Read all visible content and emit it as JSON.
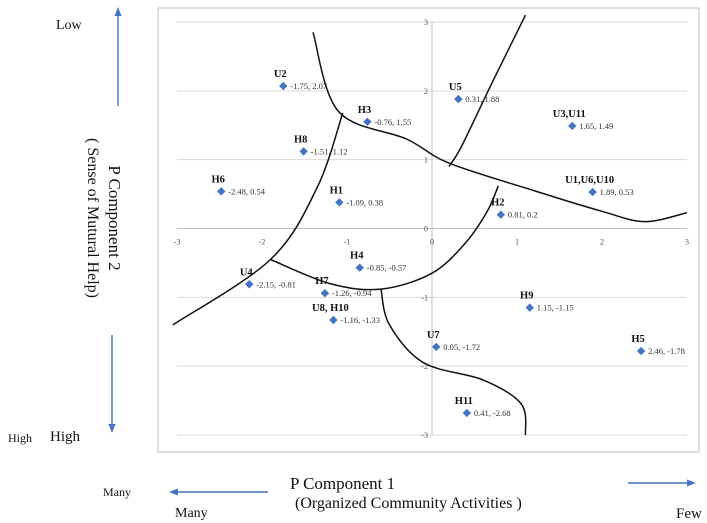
{
  "chart_data": {
    "type": "scatter",
    "xlim": [
      -3,
      3
    ],
    "ylim": [
      -3,
      3
    ],
    "xticks": [
      "-3",
      "-2",
      "-1",
      "0",
      "1",
      "2",
      "3"
    ],
    "yticks": [
      "3",
      "2",
      "1",
      "0",
      "-1",
      "-2",
      "-3"
    ],
    "grid": "horizontal",
    "points": [
      {
        "label": "U2",
        "x": -1.75,
        "y": 2.07,
        "value_text": "-1.75, 2.07"
      },
      {
        "label": "U5",
        "x": 0.31,
        "y": 1.88,
        "value_text": "0.31, 1.88"
      },
      {
        "label": "H3",
        "x": -0.76,
        "y": 1.55,
        "value_text": "-0.76, 1.55"
      },
      {
        "label": "U3,U11",
        "x": 1.65,
        "y": 1.49,
        "value_text": "1.65, 1.49"
      },
      {
        "label": "H8",
        "x": -1.51,
        "y": 1.12,
        "value_text": "-1.51, 1.12"
      },
      {
        "label": "H6",
        "x": -2.48,
        "y": 0.54,
        "value_text": "-2.48, 0.54"
      },
      {
        "label": "H1",
        "x": -1.09,
        "y": 0.38,
        "value_text": "-1.09, 0.38"
      },
      {
        "label": "U1,U6,U10",
        "x": 1.89,
        "y": 0.53,
        "value_text": "1.89, 0.53"
      },
      {
        "label": "H2",
        "x": 0.81,
        "y": 0.2,
        "value_text": "0.81, 0.2"
      },
      {
        "label": "H4",
        "x": -0.85,
        "y": -0.57,
        "value_text": "-0.85, -0.57"
      },
      {
        "label": "U4",
        "x": -2.15,
        "y": -0.81,
        "value_text": "-2.15, -0.81"
      },
      {
        "label": "H7",
        "x": -1.26,
        "y": -0.94,
        "value_text": "-1.26, -0.94"
      },
      {
        "label": "U8, H10",
        "x": -1.16,
        "y": -1.33,
        "value_text": "-1.16, -1.33"
      },
      {
        "label": "H9",
        "x": 1.15,
        "y": -1.15,
        "value_text": "1.15, -1.15"
      },
      {
        "label": "U7",
        "x": 0.05,
        "y": -1.72,
        "value_text": "0.05, -1.72"
      },
      {
        "label": "H5",
        "x": 2.46,
        "y": -1.78,
        "value_text": "2.46, -1.78"
      },
      {
        "label": "H11",
        "x": 0.41,
        "y": -2.68,
        "value_text": "0.41, -2.68"
      }
    ],
    "boundary_curves": [
      [
        [
          -1.4,
          2.85
        ],
        [
          -1.1,
          1.7
        ],
        [
          -0.3,
          1.3
        ],
        [
          0.2,
          0.95
        ],
        [
          1.2,
          0.55
        ],
        [
          2.0,
          0.25
        ],
        [
          2.5,
          0.1
        ],
        [
          3.0,
          0.23
        ]
      ],
      [
        [
          1.1,
          3.1
        ],
        [
          0.7,
          2.1
        ],
        [
          0.35,
          1.2
        ],
        [
          0.2,
          0.9
        ]
      ],
      [
        [
          -1.05,
          1.68
        ],
        [
          -1.35,
          0.6
        ],
        [
          -1.9,
          -0.45
        ],
        [
          -3.05,
          -1.4
        ]
      ],
      [
        [
          -1.9,
          -0.45
        ],
        [
          -1.2,
          -0.8
        ],
        [
          -0.6,
          -0.88
        ],
        [
          0.0,
          -0.65
        ],
        [
          0.4,
          -0.2
        ],
        [
          0.65,
          0.25
        ],
        [
          0.78,
          0.62
        ]
      ],
      [
        [
          -0.6,
          -0.88
        ],
        [
          -0.5,
          -1.4
        ],
        [
          -0.1,
          -1.95
        ],
        [
          0.6,
          -2.2
        ],
        [
          1.05,
          -2.55
        ],
        [
          1.1,
          -3.0
        ]
      ]
    ]
  },
  "axis": {
    "y_top_label": "Low",
    "y_bottom_label_1": "High",
    "y_bottom_label_2": "High",
    "y_title_1": "P Component 2",
    "y_title_2": "( Sense of Mutural Help)",
    "x_title_1": "P Component 1",
    "x_title_2": "(Organized Community Activities )",
    "x_left_label_1": "Many",
    "x_left_label_2": "Many",
    "x_right_label": "Few"
  },
  "colors": {
    "marker": "#4472c4",
    "arrow": "#4472c4",
    "curve": "#111111",
    "grid": "#d9d9d9",
    "frame": "#bfbfbf"
  }
}
